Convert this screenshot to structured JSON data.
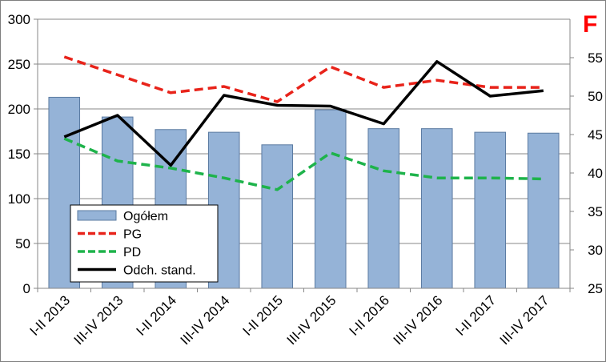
{
  "chart_data": {
    "type": "bar",
    "corner_label": "F",
    "categories": [
      "I-II 2013",
      "III-IV 2013",
      "I-II 2014",
      "III-IV 2014",
      "I-II 2015",
      "III-IV 2015",
      "I-II 2016",
      "III-IV 2016",
      "I-II 2017",
      "III-IV 2017"
    ],
    "bar_series": {
      "name": "Ogółem",
      "axis": "left",
      "values": [
        213,
        191,
        177,
        174,
        160,
        199,
        178,
        178,
        174,
        173
      ]
    },
    "line_series": [
      {
        "name": "PG",
        "axis": "left",
        "style": "dashed",
        "color": "#e8231a",
        "values": [
          258,
          238,
          218,
          225,
          208,
          247,
          224,
          232,
          224,
          224
        ]
      },
      {
        "name": "PD",
        "axis": "left",
        "style": "dashed",
        "color": "#1eb34b",
        "values": [
          167,
          142,
          134,
          123,
          110,
          151,
          131,
          123,
          123,
          122
        ]
      },
      {
        "name": "Odch. stand.",
        "axis": "right",
        "style": "solid",
        "color": "#000000",
        "values": [
          44.7,
          47.5,
          41.0,
          50.1,
          48.8,
          48.7,
          46.4,
          54.5,
          50.0,
          50.7
        ]
      }
    ],
    "y_left": {
      "min": 0,
      "max": 300,
      "ticks": [
        "0",
        "50",
        "100",
        "150",
        "200",
        "250",
        "300"
      ]
    },
    "y_right": {
      "min": 25,
      "max": 60,
      "ticks": [
        "25",
        "30",
        "35",
        "40",
        "45",
        "50",
        "55"
      ]
    },
    "colors": {
      "bar_fill": "#95b3d7",
      "bar_stroke": "#5b7ba1",
      "gridline": "#878787",
      "corner_label": "#ff0000"
    },
    "grid": true,
    "legend_position": "bottom-left"
  }
}
